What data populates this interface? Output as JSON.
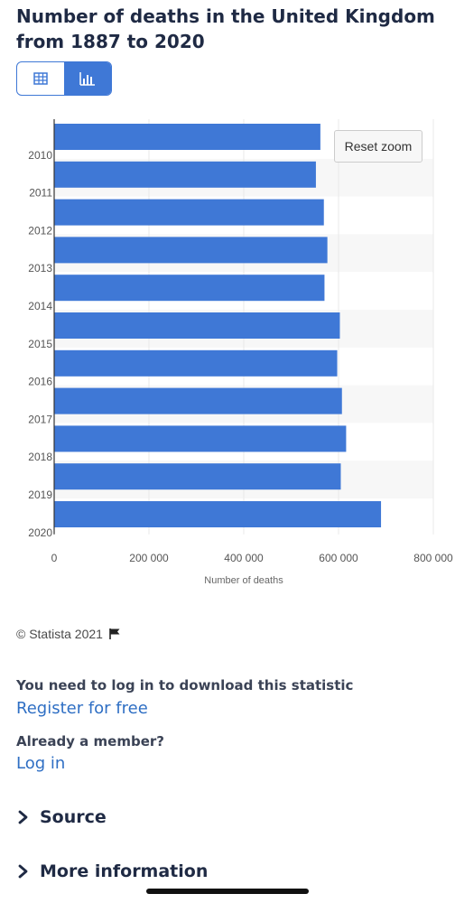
{
  "title": "Number of deaths in the United Kingdom from 1887 to 2020",
  "reset_zoom_label": "Reset zoom",
  "copyright": "© Statista 2021",
  "login_note": "You need to log in to download this statistic",
  "register_link": "Register for free",
  "member_note": "Already a member?",
  "login_link": "Log in",
  "sections": {
    "source": "Source",
    "more_info": "More information"
  },
  "colors": {
    "accent": "#3f78d6",
    "bar": "#3f78d6",
    "link": "#2f6fc4",
    "band": "#f7f7f7"
  },
  "chart_data": {
    "type": "bar",
    "orientation": "horizontal",
    "categories": [
      "2010",
      "2011",
      "2012",
      "2013",
      "2014",
      "2015",
      "2016",
      "2017",
      "2018",
      "2019",
      "2020"
    ],
    "values": [
      561666,
      552232,
      569024,
      576458,
      570341,
      602782,
      597206,
      607172,
      616014,
      604707,
      689629
    ],
    "xlabel": "Number of deaths",
    "xlim": [
      0,
      800000
    ],
    "xticks": [
      "0",
      "200 000",
      "400 000",
      "600 000",
      "800 000"
    ],
    "xtick_values": [
      0,
      200000,
      400000,
      600000,
      800000
    ],
    "grid": true
  }
}
